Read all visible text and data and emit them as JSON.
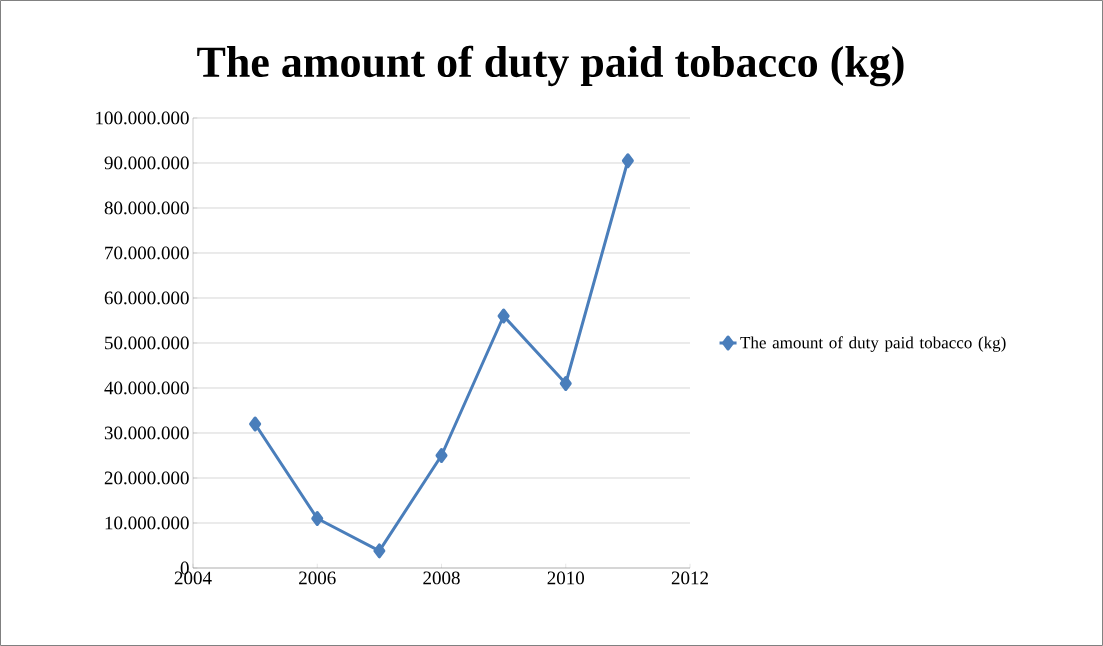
{
  "chart_data": {
    "type": "line",
    "title": "The amount of duty paid tobacco (kg)",
    "x": [
      2005,
      2006,
      2007,
      2008,
      2009,
      2010,
      2011
    ],
    "series": [
      {
        "name": "The amount of duty paid tobacco (kg)",
        "color": "#4a7ebb",
        "values": [
          32000000,
          11000000,
          3800000,
          25000000,
          56000000,
          41000000,
          90500000
        ]
      }
    ],
    "xlim": [
      2004,
      2012
    ],
    "xticks": [
      2004,
      2006,
      2008,
      2010,
      2012
    ],
    "ylim": [
      0,
      100000000
    ],
    "yticks": [
      {
        "value": 0,
        "label": "0"
      },
      {
        "value": 10000000,
        "label": "10.000.000"
      },
      {
        "value": 20000000,
        "label": "20.000.000"
      },
      {
        "value": 30000000,
        "label": "30.000.000"
      },
      {
        "value": 40000000,
        "label": "40.000.000"
      },
      {
        "value": 50000000,
        "label": "50.000.000"
      },
      {
        "value": 60000000,
        "label": "60.000.000"
      },
      {
        "value": 70000000,
        "label": "70.000.000"
      },
      {
        "value": 80000000,
        "label": "80.000.000"
      },
      {
        "value": 90000000,
        "label": "90.000.000"
      },
      {
        "value": 100000000,
        "label": "100.000.000"
      }
    ],
    "grid": "y",
    "legend": "right",
    "marker": "diamond",
    "line_style": "solid"
  }
}
